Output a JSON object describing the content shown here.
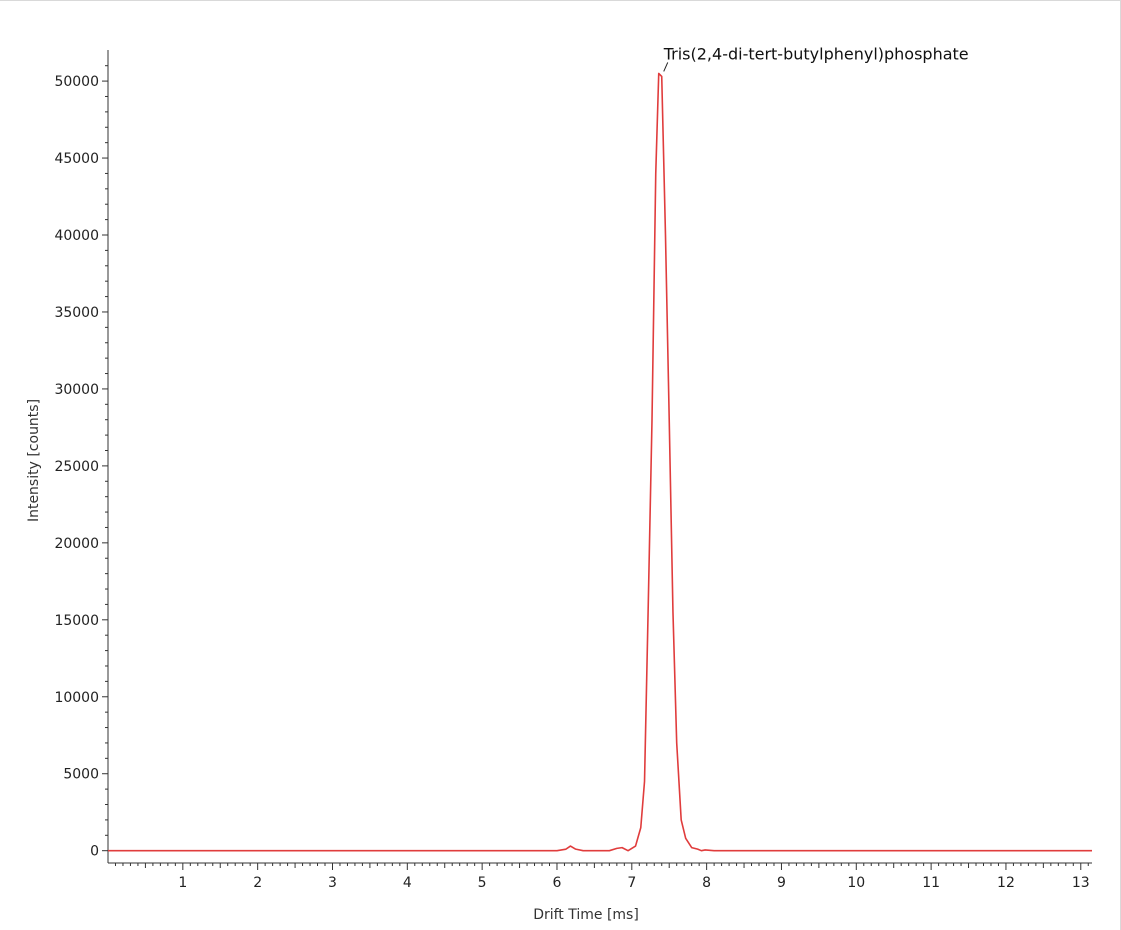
{
  "chart_data": {
    "type": "line",
    "title": "",
    "xlabel": "Drift Time [ms]",
    "ylabel": "Intensity [counts]",
    "xlim": [
      0,
      13.15
    ],
    "ylim": [
      -800,
      51500
    ],
    "xticks": [
      1,
      2,
      3,
      4,
      5,
      6,
      7,
      8,
      9,
      10,
      11,
      12,
      13
    ],
    "yticks": [
      0,
      5000,
      10000,
      15000,
      20000,
      25000,
      30000,
      35000,
      40000,
      45000,
      50000
    ],
    "grid": false,
    "legend": "none",
    "series": [
      {
        "color": "#e03c3c",
        "x": [
          0,
          6.0,
          6.12,
          6.18,
          6.25,
          6.35,
          6.7,
          6.8,
          6.87,
          6.95,
          7.05,
          7.12,
          7.17,
          7.22,
          7.27,
          7.32,
          7.36,
          7.4,
          7.45,
          7.5,
          7.55,
          7.6,
          7.66,
          7.72,
          7.8,
          7.88,
          7.93,
          7.98,
          8.1,
          13.15
        ],
        "y": [
          0,
          0,
          100,
          300,
          100,
          0,
          0,
          150,
          200,
          0,
          300,
          1500,
          4500,
          16000,
          28000,
          44000,
          50500,
          50300,
          40000,
          28000,
          15500,
          7000,
          2000,
          800,
          200,
          100,
          0,
          50,
          0,
          0
        ]
      }
    ],
    "annotations": [
      {
        "text": "Tris(2,4-di-tert-butylphenyl)phosphate",
        "x": 7.4,
        "y": 50500
      }
    ]
  }
}
